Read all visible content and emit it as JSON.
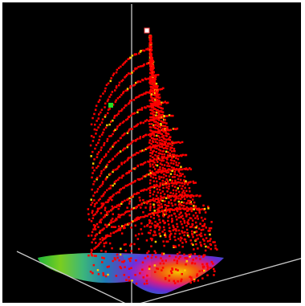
{
  "viewport": {
    "background": "#000000",
    "frame_color": "#ffffff"
  },
  "scene": {
    "axes_color": "#c8c8c8",
    "point_color": "#ff0000",
    "highlight_color": "#ffcc00",
    "marker_green": "#22dd22",
    "marker_white": "#ffffff",
    "base_colormap": [
      "#2ee82e",
      "#a8e020",
      "#ffd000",
      "#ff6a00",
      "#ff1a4a",
      "#c020c8",
      "#5a2ee0",
      "#2a6ad0",
      "#20a0a0"
    ]
  }
}
